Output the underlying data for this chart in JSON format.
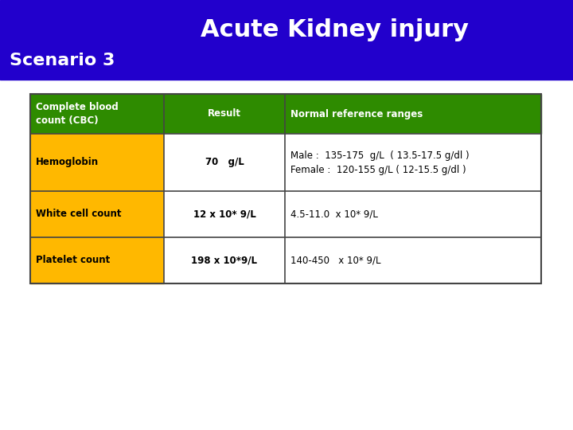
{
  "title": "Acute Kidney injury",
  "subtitle": "Scenario 3",
  "header_bg": "#2200CC",
  "header_text_color": "#FFFFFF",
  "table_header_bg": "#2E8B00",
  "table_header_text_color": "#FFFFFF",
  "row_bg_col1": "#FFB800",
  "row_bg_col2": "#FFFFFF",
  "row_bg_col3": "#FFFFFF",
  "border_color": "#444444",
  "col1_header": "Complete blood\ncount (CBC)",
  "col2_header": "Result",
  "col3_header": "Normal reference ranges",
  "rows": [
    {
      "col1": "Hemoglobin",
      "col2": "70   g/L",
      "col3": "Male :  135-175  g/L  ( 13.5-17.5 g/dl )\nFemale :  120-155 g/L ( 12-15.5 g/dl )"
    },
    {
      "col1": "White cell count",
      "col2": "12 x 10* 9/L",
      "col3": "4.5-11.0  x 10* 9/L"
    },
    {
      "col1": "Platelet count",
      "col2": "198 x 10*9/L",
      "col3": "140-450   x 10* 9/L"
    }
  ]
}
